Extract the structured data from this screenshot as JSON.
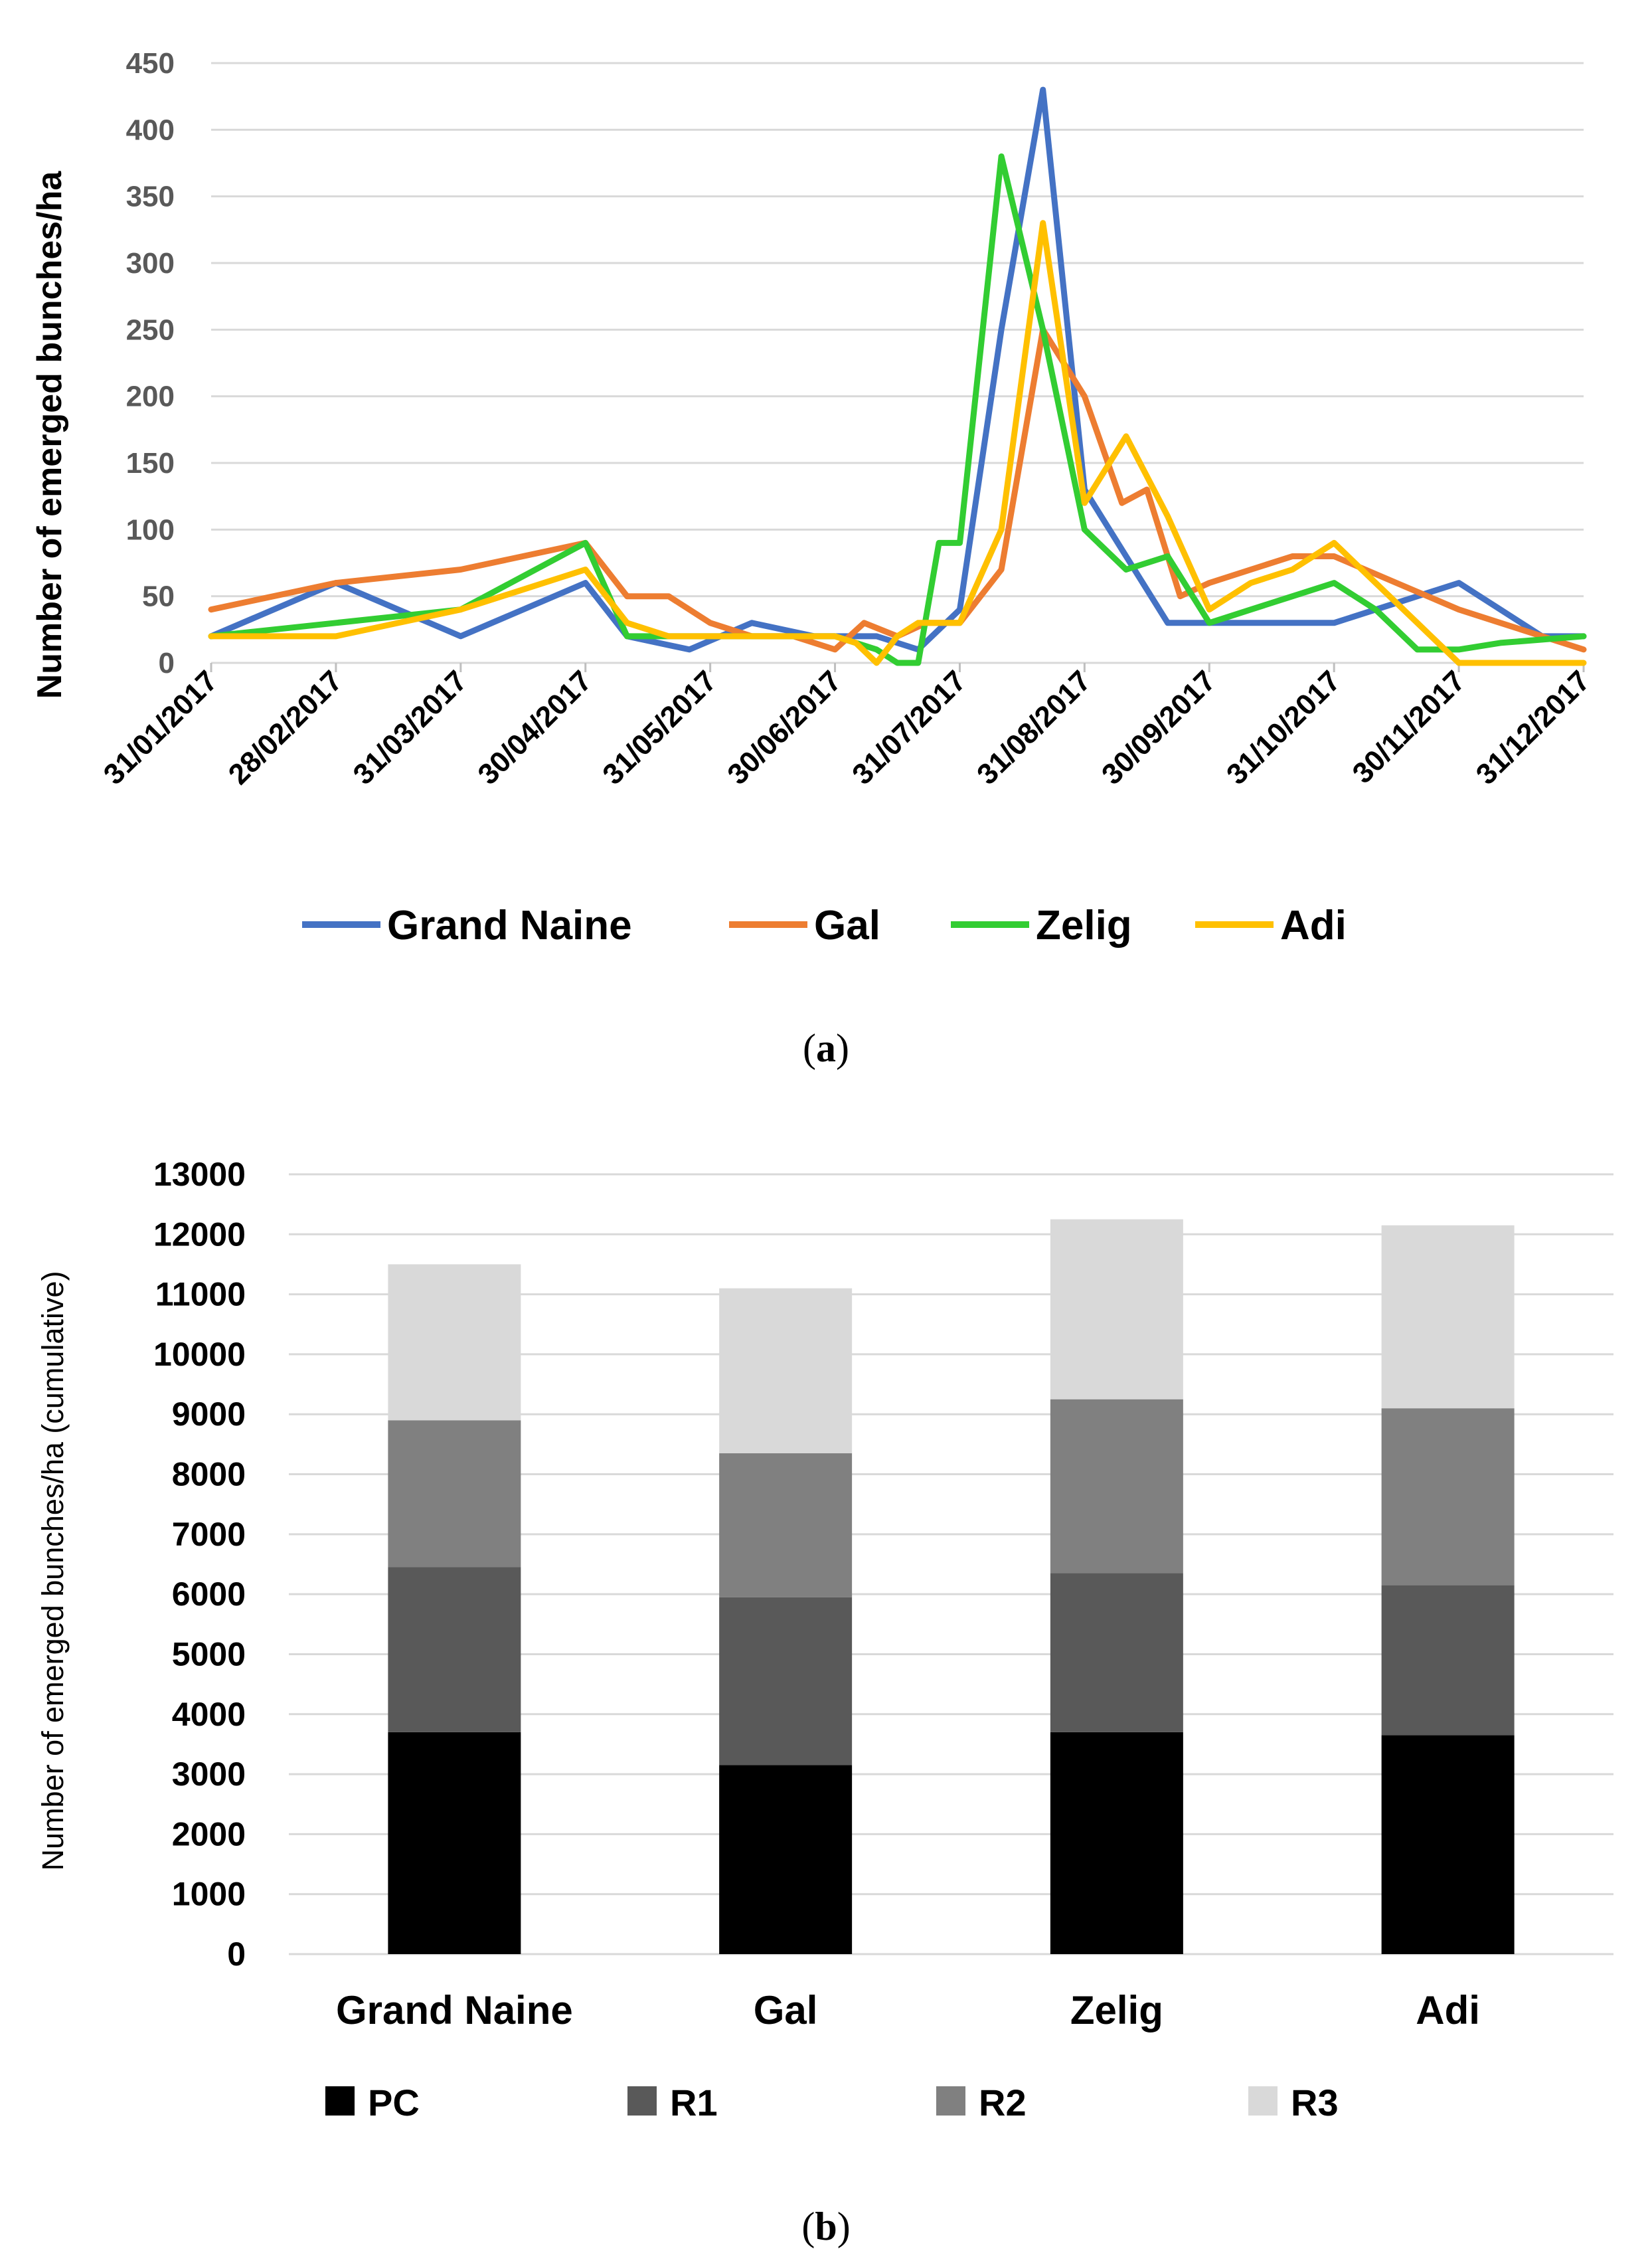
{
  "chart_data": [
    {
      "type": "line",
      "panel_label": "a",
      "title": "",
      "xlabel": "",
      "ylabel": "Number of emerged bunches/ha",
      "ylim": [
        0,
        450
      ],
      "yticks": [
        0,
        50,
        100,
        150,
        200,
        250,
        300,
        350,
        400,
        450
      ],
      "grid": true,
      "legend_position": "bottom",
      "xtick_labels": [
        "31/01/2017",
        "28/02/2017",
        "31/03/2017",
        "30/04/2017",
        "31/05/2017",
        "30/06/2017",
        "31/07/2017",
        "31/08/2017",
        "30/09/2017",
        "31/10/2017",
        "30/11/2017",
        "31/12/2017"
      ],
      "x_index_range": [
        0,
        33
      ],
      "xtick_positions": [
        0,
        3,
        6,
        9,
        12,
        15,
        18,
        21,
        24,
        27,
        30,
        33
      ],
      "series": [
        {
          "name": "Grand Naine",
          "color": "#4472C4",
          "x": [
            0,
            3,
            6,
            9,
            10,
            11.5,
            13,
            14.5,
            16,
            17,
            18,
            19,
            20,
            21,
            22,
            23,
            24,
            25,
            26,
            27,
            29,
            30,
            31,
            32,
            33
          ],
          "y": [
            20,
            60,
            20,
            60,
            20,
            10,
            30,
            20,
            20,
            10,
            40,
            250,
            430,
            130,
            80,
            30,
            30,
            30,
            30,
            30,
            50,
            60,
            40,
            20,
            20
          ]
        },
        {
          "name": "Gal",
          "color": "#ED7D31",
          "x": [
            0,
            3,
            6,
            9,
            10,
            11,
            12,
            13,
            14,
            15,
            15.7,
            16.5,
            17.2,
            18,
            19,
            20,
            21,
            21.9,
            22.5,
            23.3,
            24,
            25,
            26,
            27,
            28.5,
            30,
            31,
            33
          ],
          "y": [
            40,
            60,
            70,
            90,
            50,
            50,
            30,
            20,
            20,
            10,
            30,
            20,
            30,
            30,
            70,
            250,
            200,
            120,
            130,
            50,
            60,
            70,
            80,
            80,
            60,
            40,
            30,
            10
          ]
        },
        {
          "name": "Zelig",
          "color": "#32CD32",
          "x": [
            0,
            3,
            6,
            9,
            10,
            11,
            12,
            13,
            14,
            15,
            16,
            16.5,
            17,
            17.5,
            18,
            19,
            20,
            21,
            22,
            23,
            24,
            25,
            26,
            27,
            28,
            29,
            30,
            31,
            33
          ],
          "y": [
            20,
            30,
            40,
            90,
            20,
            20,
            20,
            20,
            20,
            20,
            10,
            0,
            0,
            90,
            90,
            380,
            250,
            100,
            70,
            80,
            30,
            40,
            50,
            60,
            40,
            10,
            10,
            15,
            20
          ]
        },
        {
          "name": "Adi",
          "color": "#FFC000",
          "x": [
            0,
            3,
            6,
            9,
            10,
            11,
            12,
            13,
            14,
            15,
            15.5,
            16,
            16.5,
            17,
            17.5,
            18,
            19,
            20,
            21,
            22,
            23,
            24,
            25,
            26,
            27,
            28,
            29,
            30,
            31,
            32,
            33
          ],
          "y": [
            20,
            20,
            40,
            70,
            30,
            20,
            20,
            20,
            20,
            20,
            15,
            0,
            20,
            30,
            30,
            30,
            100,
            330,
            120,
            170,
            110,
            40,
            60,
            70,
            90,
            60,
            30,
            0,
            0,
            0,
            0
          ]
        }
      ]
    },
    {
      "type": "bar",
      "stacked": true,
      "panel_label": "b",
      "title": "",
      "xlabel": "",
      "ylabel": "Number of emerged bunches/ha (cumulative)",
      "ylim": [
        0,
        13000
      ],
      "yticks": [
        0,
        1000,
        2000,
        3000,
        4000,
        5000,
        6000,
        7000,
        8000,
        9000,
        10000,
        11000,
        12000,
        13000
      ],
      "grid": true,
      "legend_position": "bottom",
      "categories": [
        "Grand Naine",
        "Gal",
        "Zelig",
        "Adi"
      ],
      "series": [
        {
          "name": "PC",
          "color": "#000000",
          "values": [
            3700,
            3150,
            3700,
            3650
          ]
        },
        {
          "name": "R1",
          "color": "#595959",
          "values": [
            2750,
            2800,
            2650,
            2500
          ]
        },
        {
          "name": "R2",
          "color": "#808080",
          "values": [
            2450,
            2400,
            2900,
            2950
          ]
        },
        {
          "name": "R3",
          "color": "#D9D9D9",
          "values": [
            2600,
            2750,
            3000,
            3050
          ]
        }
      ]
    }
  ],
  "panel_label_a": "a",
  "panel_label_b": "b",
  "paren_open": "(",
  "paren_close": ")"
}
